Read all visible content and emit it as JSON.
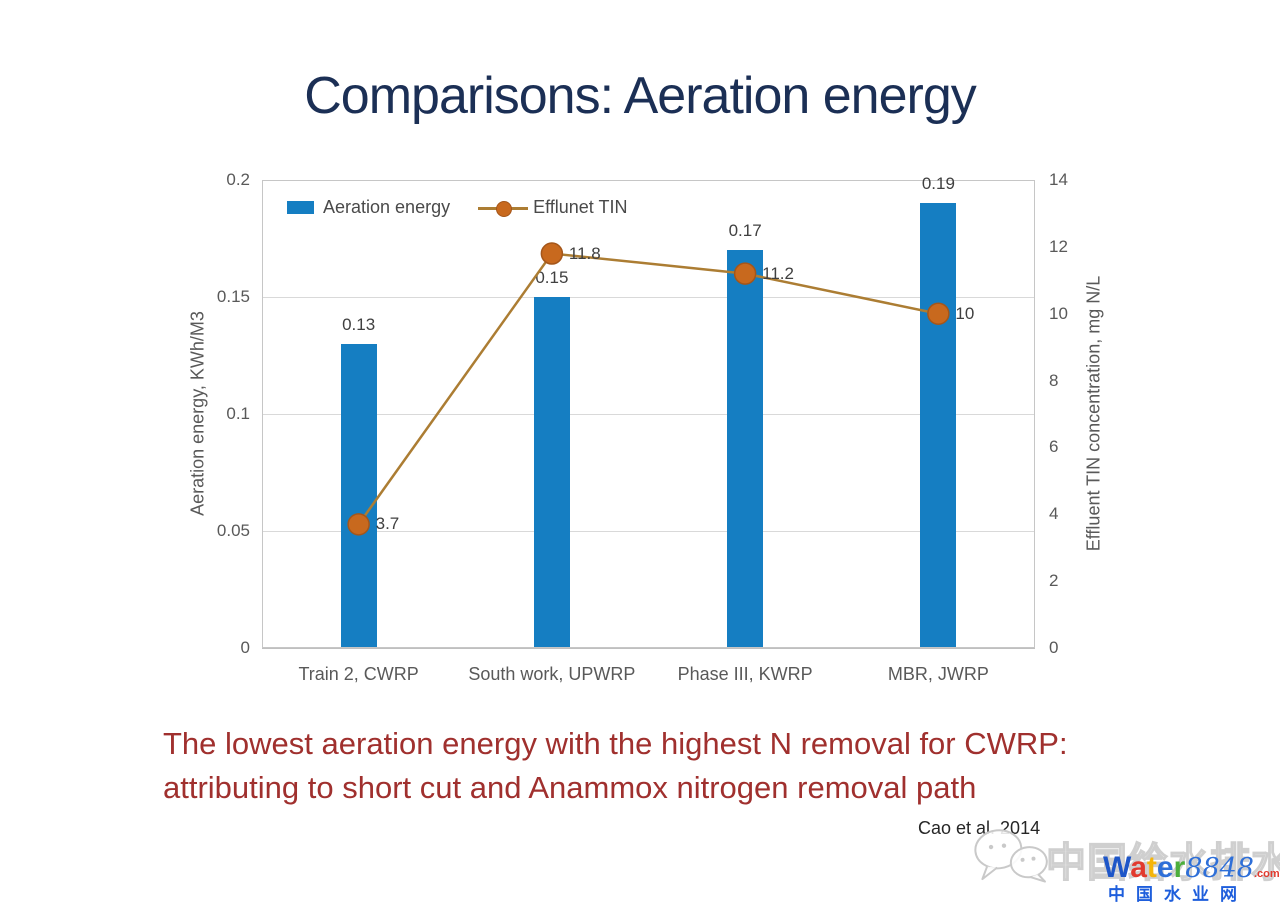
{
  "slide": {
    "title": "Comparisons: Aeration energy",
    "note": {
      "line1": "The lowest aeration energy with the highest N removal for CWRP:",
      "line2": "attributing to short cut and Anammox nitrogen removal path"
    },
    "citation": "Cao et al. 2014"
  },
  "chart_data": {
    "type": "bar",
    "categories": [
      "Train 2, CWRP",
      "South work, UPWRP",
      "Phase III, KWRP",
      "MBR, JWRP"
    ],
    "series": [
      {
        "name": "Aeration energy",
        "type": "bar",
        "axis": "left",
        "values": [
          0.13,
          0.15,
          0.17,
          0.19
        ],
        "labels": [
          "0.13",
          "0.15",
          "0.17",
          "0.19"
        ],
        "color": "#157EC2"
      },
      {
        "name": "Efflunet TIN",
        "type": "line",
        "axis": "right",
        "values": [
          3.7,
          11.8,
          11.2,
          10
        ],
        "labels": [
          "3.7",
          "11.8",
          "11.2",
          "10"
        ],
        "line_color": "#AC7D33",
        "marker_color": "#C8691E",
        "marker_stroke": "#A4561A"
      }
    ],
    "left_axis": {
      "title": "Aeration energy, KWh/M3",
      "min": 0,
      "max": 0.2,
      "ticks": [
        0,
        0.05,
        0.1,
        0.15,
        0.2
      ],
      "tick_labels": [
        "0",
        "0.05",
        "0.1",
        "0.15",
        "0.2"
      ]
    },
    "right_axis": {
      "title": "Effluent TIN concentration, mg N/L",
      "min": 0,
      "max": 14,
      "ticks": [
        0,
        2,
        4,
        6,
        8,
        10,
        12,
        14
      ],
      "tick_labels": [
        "0",
        "2",
        "4",
        "6",
        "8",
        "10",
        "12",
        "14"
      ]
    },
    "grid": true,
    "legend_position": "top-left-inside"
  },
  "watermark": {
    "cn_outline": "中国给水排水",
    "brand_letters": [
      {
        "ch": "W",
        "color": "#1E56C8"
      },
      {
        "ch": "a",
        "color": "#E23A2E"
      },
      {
        "ch": "t",
        "color": "#F5B50A"
      },
      {
        "ch": "e",
        "color": "#2E6FD8"
      },
      {
        "ch": "r",
        "color": "#4CAE3C"
      }
    ],
    "brand_number": "8848",
    "brand_number_color": "#2E6FD8",
    "brand_suffix": ".com",
    "brand_suffix_color": "#E23A2E",
    "cn_blue": "中国水业网",
    "cn_blue_color": "#1E5EDC"
  },
  "colors": {
    "title": "#1B2F55",
    "note": "#A0302E",
    "axis_text": "#595959",
    "data_label": "#404040",
    "gridline": "#D9D9D9",
    "plot_border": "#C6C6C6"
  }
}
